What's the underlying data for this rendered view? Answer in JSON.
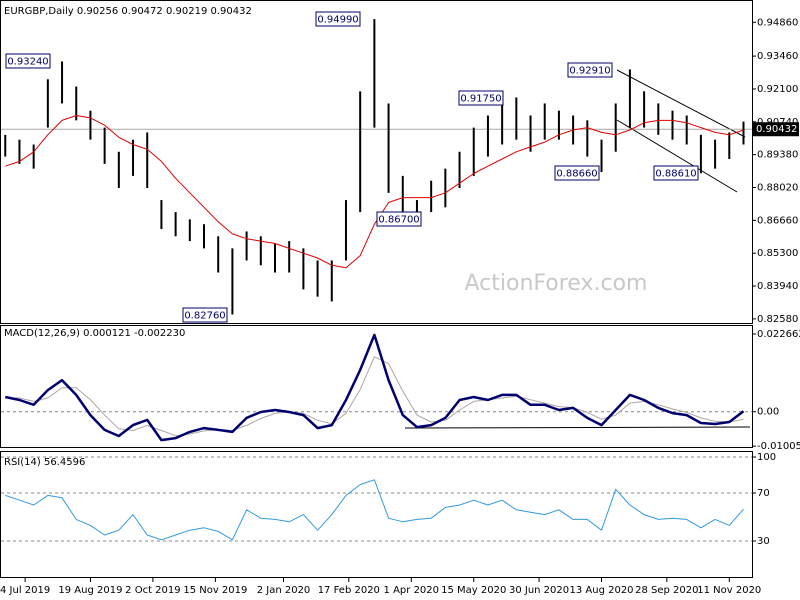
{
  "chart_data": [
    {
      "type": "range_bar",
      "header": "EURGBP,Daily 0.90256 0.90472 0.90219 0.90432",
      "x": [
        "2019-06-20",
        "2019-06-30",
        "2019-07-10",
        "2019-07-20",
        "2019-07-30",
        "2019-08-09",
        "2019-08-19",
        "2019-08-29",
        "2019-09-08",
        "2019-09-18",
        "2019-09-28",
        "2019-10-08",
        "2019-10-18",
        "2019-10-28",
        "2019-11-07",
        "2019-11-17",
        "2019-11-27",
        "2019-12-07",
        "2019-12-17",
        "2019-12-27",
        "2020-01-06",
        "2020-01-16",
        "2020-01-26",
        "2020-02-05",
        "2020-02-15",
        "2020-02-25",
        "2020-03-06",
        "2020-03-16",
        "2020-03-26",
        "2020-04-05",
        "2020-04-15",
        "2020-04-25",
        "2020-05-05",
        "2020-05-15",
        "2020-05-25",
        "2020-06-04",
        "2020-06-14",
        "2020-06-24",
        "2020-07-04",
        "2020-07-14",
        "2020-07-24",
        "2020-08-03",
        "2020-08-13",
        "2020-08-23",
        "2020-09-02",
        "2020-09-12",
        "2020-09-22",
        "2020-10-02",
        "2020-10-12",
        "2020-10-22",
        "2020-11-01",
        "2020-11-11",
        "2020-11-21"
      ],
      "high": [
        0.902,
        0.9,
        0.898,
        0.925,
        0.9324,
        0.922,
        0.912,
        0.905,
        0.895,
        0.9,
        0.903,
        0.875,
        0.87,
        0.867,
        0.865,
        0.86,
        0.855,
        0.862,
        0.86,
        0.857,
        0.858,
        0.855,
        0.85,
        0.85,
        0.875,
        0.92,
        0.9499,
        0.915,
        0.885,
        0.875,
        0.883,
        0.888,
        0.895,
        0.905,
        0.91,
        0.915,
        0.9175,
        0.91,
        0.915,
        0.912,
        0.91,
        0.908,
        0.9,
        0.915,
        0.9291,
        0.92,
        0.915,
        0.912,
        0.91,
        0.902,
        0.9,
        0.903,
        0.9075
      ],
      "low": [
        0.893,
        0.89,
        0.888,
        0.905,
        0.915,
        0.908,
        0.9,
        0.89,
        0.88,
        0.885,
        0.88,
        0.863,
        0.86,
        0.858,
        0.855,
        0.845,
        0.8276,
        0.85,
        0.848,
        0.845,
        0.845,
        0.838,
        0.835,
        0.833,
        0.85,
        0.87,
        0.905,
        0.878,
        0.87,
        0.867,
        0.87,
        0.872,
        0.88,
        0.885,
        0.893,
        0.898,
        0.9,
        0.895,
        0.9,
        0.9,
        0.898,
        0.893,
        0.8866,
        0.895,
        0.905,
        0.905,
        0.902,
        0.9,
        0.898,
        0.8861,
        0.888,
        0.892,
        0.898
      ],
      "color": "#000000",
      "ma": {
        "color": "#e00000",
        "values": [
          0.889,
          0.891,
          0.895,
          0.902,
          0.908,
          0.91,
          0.909,
          0.906,
          0.901,
          0.898,
          0.896,
          0.891,
          0.884,
          0.878,
          0.872,
          0.866,
          0.861,
          0.859,
          0.858,
          0.857,
          0.855,
          0.853,
          0.851,
          0.848,
          0.847,
          0.852,
          0.865,
          0.874,
          0.876,
          0.876,
          0.876,
          0.878,
          0.882,
          0.886,
          0.889,
          0.892,
          0.895,
          0.897,
          0.899,
          0.902,
          0.904,
          0.905,
          0.903,
          0.902,
          0.904,
          0.907,
          0.908,
          0.908,
          0.907,
          0.905,
          0.903,
          0.902,
          0.904
        ]
      },
      "xlim": [
        "2019-06-17",
        "2020-11-27"
      ],
      "ylim": [
        0.8241,
        0.957
      ],
      "yticks": [
        {
          "value": 0.9486,
          "label": "0.94860"
        },
        {
          "value": 0.9346,
          "label": "0.93460"
        },
        {
          "value": 0.921,
          "label": "0.92100"
        },
        {
          "value": 0.9074,
          "label": "0.90740"
        },
        {
          "value": 0.8938,
          "label": "0.89380"
        },
        {
          "value": 0.8802,
          "label": "0.88020"
        },
        {
          "value": 0.8666,
          "label": "0.86660"
        },
        {
          "value": 0.853,
          "label": "0.85300"
        },
        {
          "value": 0.8394,
          "label": "0.83940"
        },
        {
          "value": 0.8258,
          "label": "0.82580"
        }
      ],
      "current_price": {
        "value": 0.90432,
        "label": "0.90432"
      },
      "annotations": [
        "0.93240",
        "0.94990",
        "0.91750",
        "0.92910",
        "0.86700",
        "0.88660",
        "0.88610",
        "0.82760"
      ],
      "watermark": "ActionForex.com"
    },
    {
      "type": "line",
      "title": "MACD(12,26,9) 0.000121 -0.002230",
      "x": [
        "2019-06-20",
        "2019-06-30",
        "2019-07-10",
        "2019-07-20",
        "2019-07-30",
        "2019-08-09",
        "2019-08-19",
        "2019-08-29",
        "2019-09-08",
        "2019-09-18",
        "2019-09-28",
        "2019-10-08",
        "2019-10-18",
        "2019-10-28",
        "2019-11-07",
        "2019-11-17",
        "2019-11-27",
        "2019-12-07",
        "2019-12-17",
        "2019-12-27",
        "2020-01-06",
        "2020-01-16",
        "2020-01-26",
        "2020-02-05",
        "2020-02-15",
        "2020-02-25",
        "2020-03-06",
        "2020-03-16",
        "2020-03-26",
        "2020-04-05",
        "2020-04-15",
        "2020-04-25",
        "2020-05-05",
        "2020-05-15",
        "2020-05-25",
        "2020-06-04",
        "2020-06-14",
        "2020-06-24",
        "2020-07-04",
        "2020-07-14",
        "2020-07-24",
        "2020-08-03",
        "2020-08-13",
        "2020-08-23",
        "2020-09-02",
        "2020-09-12",
        "2020-09-22",
        "2020-10-02",
        "2020-10-12",
        "2020-10-22",
        "2020-11-01",
        "2020-11-11",
        "2020-11-21"
      ],
      "series": [
        {
          "color": "#b0a4a4",
          "values": [
            0.004,
            0.004,
            0.003,
            0.004,
            0.007,
            0.007,
            0.0035,
            -0.001,
            -0.005,
            -0.0055,
            -0.004,
            -0.0055,
            -0.007,
            -0.0065,
            -0.0056,
            -0.0052,
            -0.0055,
            -0.004,
            -0.002,
            -0.0005,
            0.0,
            -0.0005,
            -0.0025,
            -0.0035,
            -0.0005,
            0.0065,
            0.016,
            0.014,
            0.006,
            -0.001,
            -0.003,
            -0.0025,
            0.0005,
            0.003,
            0.0035,
            0.004,
            0.0045,
            0.0035,
            0.0025,
            0.0015,
            0.0012,
            -0.0002,
            -0.0022,
            -0.001,
            0.0025,
            0.003,
            0.002,
            0.0008,
            -0.0002,
            -0.0018,
            -0.0028,
            -0.003,
            -0.00223
          ]
        },
        {
          "color": "#00006e",
          "values": [
            0.0043,
            0.0034,
            0.002,
            0.0063,
            0.0092,
            0.0049,
            -0.001,
            -0.0053,
            -0.0071,
            -0.0039,
            -0.0024,
            -0.0083,
            -0.0077,
            -0.0059,
            -0.0048,
            -0.0053,
            -0.0059,
            -0.0018,
            -0.0001,
            0.0005,
            -0.0001,
            -0.001,
            -0.0048,
            -0.0039,
            0.0034,
            0.0122,
            0.0224,
            0.0092,
            -0.001,
            -0.0045,
            -0.0039,
            -0.0018,
            0.0034,
            0.0043,
            0.0034,
            0.0049,
            0.0049,
            0.002,
            0.002,
            0.0005,
            0.0011,
            -0.0018,
            -0.0039,
            0.0005,
            0.0049,
            0.0034,
            0.0011,
            -0.0004,
            -0.001,
            -0.0033,
            -0.0036,
            -0.003,
            0.000121
          ]
        }
      ],
      "xlim": [
        "2019-06-17",
        "2020-11-27"
      ],
      "ylim": [
        -0.0103,
        0.025
      ],
      "yticks": [
        0.022662,
        {
          "value": 0,
          "label": "0.00"
        },
        -0.010052
      ],
      "zero_line": true
    },
    {
      "type": "line",
      "title": "RSI(14) 56.4596",
      "x": [
        "2019-06-20",
        "2019-06-30",
        "2019-07-10",
        "2019-07-20",
        "2019-07-30",
        "2019-08-09",
        "2019-08-19",
        "2019-08-29",
        "2019-09-08",
        "2019-09-18",
        "2019-09-28",
        "2019-10-08",
        "2019-10-18",
        "2019-10-28",
        "2019-11-07",
        "2019-11-17",
        "2019-11-27",
        "2019-12-07",
        "2019-12-17",
        "2019-12-27",
        "2020-01-06",
        "2020-01-16",
        "2020-01-26",
        "2020-02-05",
        "2020-02-15",
        "2020-02-25",
        "2020-03-06",
        "2020-03-16",
        "2020-03-26",
        "2020-04-05",
        "2020-04-15",
        "2020-04-25",
        "2020-05-05",
        "2020-05-15",
        "2020-05-25",
        "2020-06-04",
        "2020-06-14",
        "2020-06-24",
        "2020-07-04",
        "2020-07-14",
        "2020-07-24",
        "2020-08-03",
        "2020-08-13",
        "2020-08-23",
        "2020-09-02",
        "2020-09-12",
        "2020-09-22",
        "2020-10-02",
        "2020-10-12",
        "2020-10-22",
        "2020-11-01",
        "2020-11-11",
        "2020-11-21"
      ],
      "series": [
        {
          "color": "#3399dd",
          "values": [
            68,
            64,
            60,
            68,
            66,
            48,
            43,
            35,
            39,
            52,
            35,
            31,
            35,
            39,
            41,
            38,
            31,
            56,
            49,
            48,
            46,
            52,
            39,
            52,
            68,
            77,
            81,
            49,
            46,
            48,
            49,
            58,
            60,
            64,
            60,
            64,
            56,
            54,
            52,
            56,
            48,
            48,
            39,
            73,
            60,
            52,
            48,
            49,
            48,
            41,
            48,
            43,
            56.4596
          ]
        }
      ],
      "xlim": [
        "2019-06-17",
        "2020-11-27"
      ],
      "ylim": [
        0,
        100
      ],
      "yticks": [
        100,
        70,
        30
      ],
      "grid": true,
      "xticks": [
        {
          "value": "2019-07-04",
          "label": "4 Jul 2019"
        },
        {
          "value": "2019-08-19",
          "label": "19 Aug 2019"
        },
        {
          "value": "2019-10-02",
          "label": "2 Oct 2019"
        },
        {
          "value": "2019-11-15",
          "label": "15 Nov 2019"
        },
        {
          "value": "2020-01-02",
          "label": "2 Jan 2020"
        },
        {
          "value": "2020-02-17",
          "label": "17 Feb 2020"
        },
        {
          "value": "2020-04-01",
          "label": "1 Apr 2020"
        },
        {
          "value": "2020-05-15",
          "label": "15 May 2020"
        },
        {
          "value": "2020-06-30",
          "label": "30 Jun 2020"
        },
        {
          "value": "2020-08-13",
          "label": "13 Aug 2020"
        },
        {
          "value": "2020-09-28",
          "label": "28 Sep 2020"
        },
        {
          "value": "2020-11-11",
          "label": "11 Nov 2020"
        }
      ]
    }
  ]
}
